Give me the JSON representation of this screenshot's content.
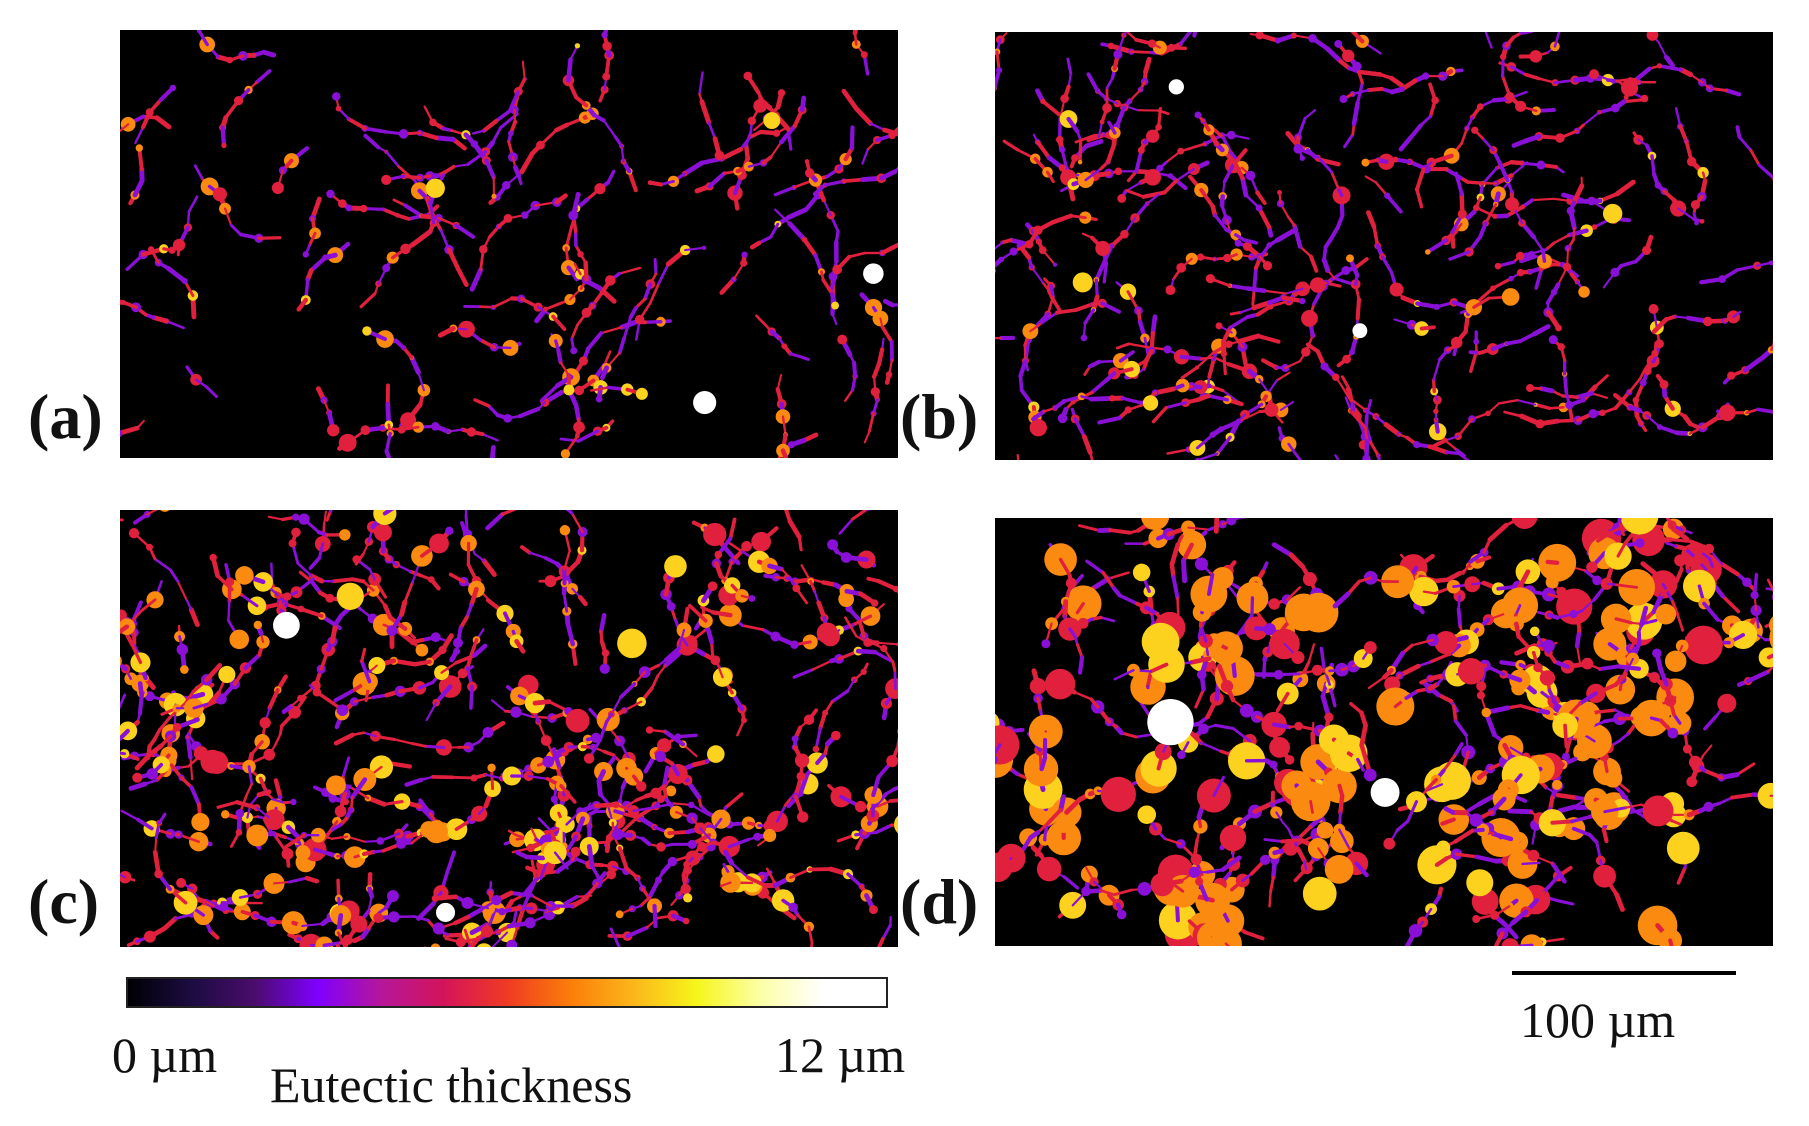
{
  "panels": [
    {
      "id": "a",
      "label": "(a)"
    },
    {
      "id": "b",
      "label": "(b)"
    },
    {
      "id": "c",
      "label": "(c)"
    },
    {
      "id": "d",
      "label": "(d)"
    }
  ],
  "colorbar": {
    "min_label": "0 µm",
    "max_label": "12 µm",
    "title": "Eutectic thickness",
    "min_value": 0,
    "max_value": 12,
    "unit": "µm",
    "colors": [
      "#000004",
      "#1b0c41",
      "#4a0c6b",
      "#7f00ff",
      "#b5169a",
      "#d4145a",
      "#f03a22",
      "#fb7d0a",
      "#fbb61a",
      "#f6f51b",
      "#fcffa4",
      "#ffffff",
      "#ffffff"
    ]
  },
  "scalebar": {
    "label": "100 µm",
    "length_value": 100,
    "unit": "µm"
  },
  "colors": {
    "background": "#000000",
    "thin": "#8a10d8",
    "mid": "#e0203c",
    "thick": "#fb8a10",
    "thicker": "#fcd21e",
    "thickest": "#ffffff"
  }
}
